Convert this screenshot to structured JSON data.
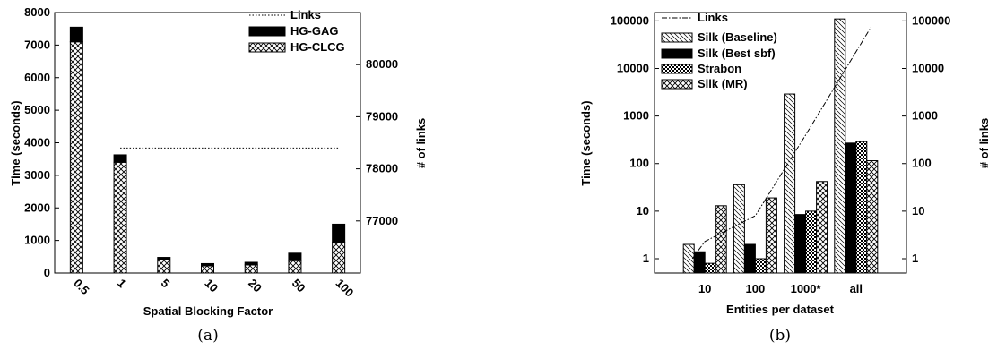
{
  "chart_data": [
    {
      "type": "bar",
      "stacked": true,
      "caption": "(a)",
      "xlabel": "Spatial Blocking Factor",
      "ylabel": "Time (seconds)",
      "y2label": "# of links",
      "categories": [
        "0.5",
        "1",
        "5",
        "10",
        "20",
        "50",
        "100"
      ],
      "series": [
        {
          "name": "HG-CLCG",
          "values": [
            7100,
            3400,
            400,
            220,
            250,
            380,
            950
          ]
        },
        {
          "name": "HG-GAG",
          "values": [
            450,
            230,
            80,
            70,
            80,
            230,
            550
          ]
        }
      ],
      "line": {
        "name": "Links",
        "value": 78400,
        "x_range": [
          "1",
          "100"
        ]
      },
      "ylim": [
        0,
        8000
      ],
      "yticks": [
        0,
        1000,
        2000,
        3000,
        4000,
        5000,
        6000,
        7000,
        8000
      ],
      "y2lim": [
        76000,
        81000
      ],
      "y2ticks": [
        77000,
        78000,
        79000,
        80000
      ],
      "legend": "top-right",
      "grid": false
    },
    {
      "type": "bar",
      "log_scale": true,
      "caption": "(b)",
      "xlabel": "Entities per dataset",
      "ylabel": "Time (seconds)",
      "y2label": "# of links",
      "categories": [
        "10",
        "100",
        "1000*",
        "all"
      ],
      "series": [
        {
          "name": "Silk (Baseline)",
          "values": [
            2,
            36,
            2900,
            110000
          ]
        },
        {
          "name": "Silk (Best sbf)",
          "values": [
            1.4,
            2,
            8.5,
            270
          ]
        },
        {
          "name": "Strabon",
          "values": [
            0.8,
            1,
            10,
            290
          ]
        },
        {
          "name": "Silk (MR)",
          "values": [
            13,
            19,
            42,
            115
          ]
        }
      ],
      "line": {
        "name": "Links",
        "x": [
          0.75,
          1,
          2,
          3,
          4.3
        ],
        "values": [
          1,
          2.3,
          8,
          400,
          75000
        ]
      },
      "ylim": [
        0.5,
        150000
      ],
      "yticks": [
        1,
        10,
        100,
        1000,
        10000,
        100000
      ],
      "y2ticks": [
        1,
        10,
        100,
        1000,
        10000,
        100000
      ],
      "legend": "top-left",
      "grid": false
    }
  ]
}
